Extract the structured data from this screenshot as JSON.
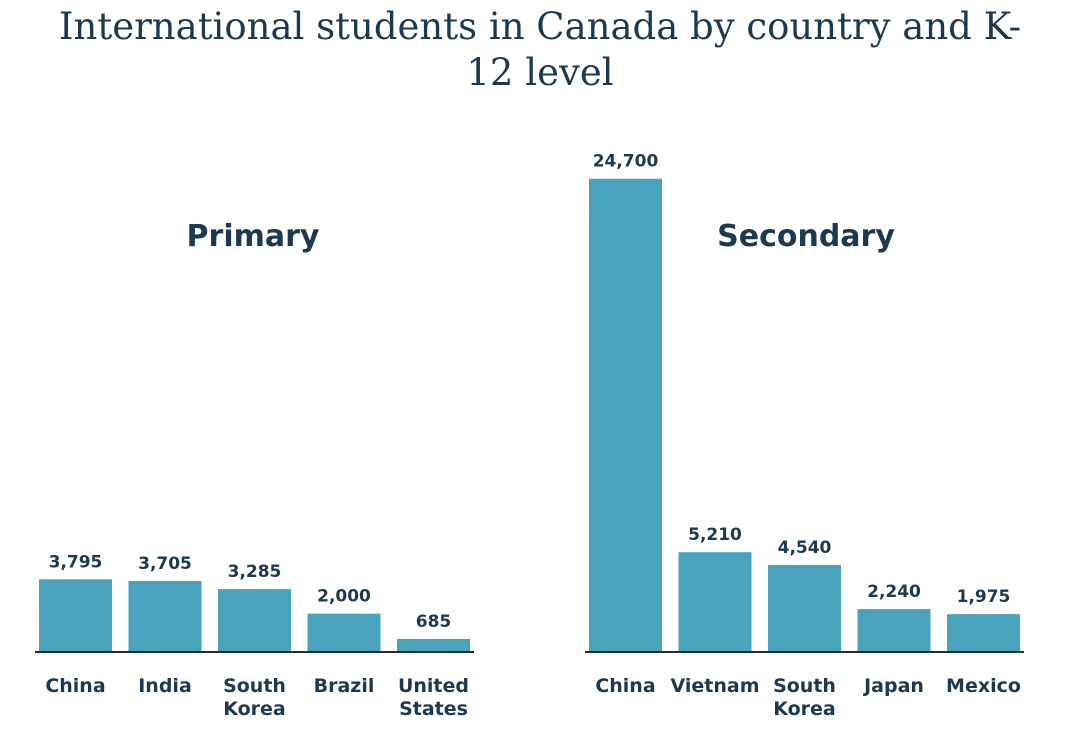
{
  "title": "International students in Canada by country and K-12 level",
  "colors": {
    "bar": "#4aa3bd",
    "title": "#1b3a52",
    "axis": "#2b2b2b"
  },
  "chart_data": [
    {
      "type": "bar",
      "title": "Primary",
      "categories": [
        "China",
        "India",
        "South Korea",
        "Brazil",
        "United States"
      ],
      "category_lines": [
        [
          "China"
        ],
        [
          "India"
        ],
        [
          "South",
          "Korea"
        ],
        [
          "Brazil"
        ],
        [
          "United",
          "States"
        ]
      ],
      "values": [
        3795,
        3705,
        3285,
        2000,
        685
      ],
      "value_labels": [
        "3,795",
        "3,705",
        "3,285",
        "2,000",
        "685"
      ],
      "ylim": [
        0,
        25000
      ],
      "grid": false
    },
    {
      "type": "bar",
      "title": "Secondary",
      "categories": [
        "China",
        "Vietnam",
        "South Korea",
        "Japan",
        "Mexico"
      ],
      "category_lines": [
        [
          "China"
        ],
        [
          "Vietnam"
        ],
        [
          "South",
          "Korea"
        ],
        [
          "Japan"
        ],
        [
          "Mexico"
        ]
      ],
      "values": [
        24700,
        5210,
        4540,
        2240,
        1975
      ],
      "value_labels": [
        "24,700",
        "5,210",
        "4,540",
        "2,240",
        "1,975"
      ],
      "ylim": [
        0,
        25000
      ],
      "grid": false
    }
  ]
}
